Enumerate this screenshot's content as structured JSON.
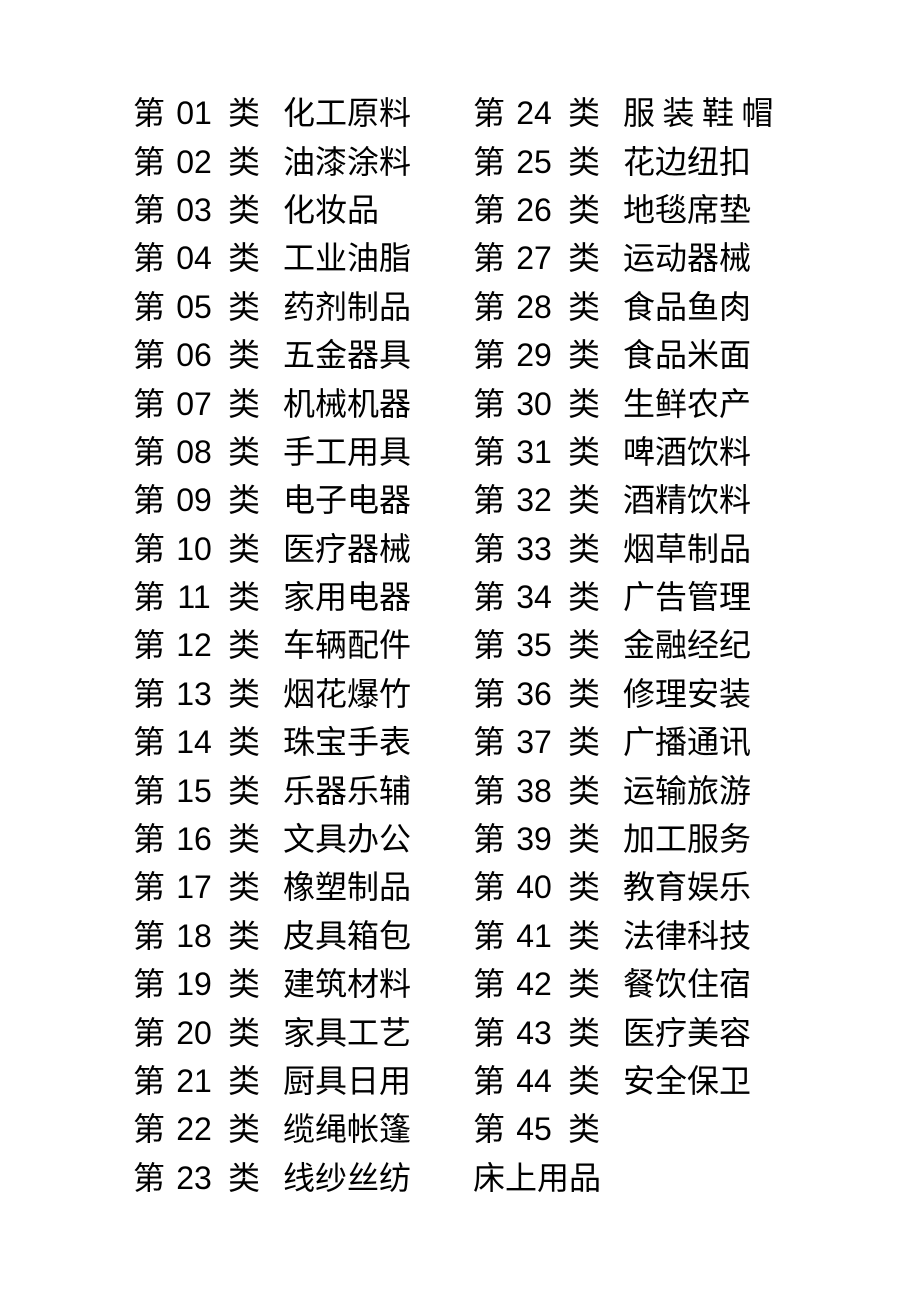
{
  "page": {
    "background": "#ffffff",
    "text_color": "#000000"
  },
  "labels": {
    "prefix": "第",
    "suffix": "类"
  },
  "left_items": [
    {
      "num": "01",
      "name": "化工原料"
    },
    {
      "num": "02",
      "name": "油漆涂料"
    },
    {
      "num": "03",
      "name": "化妆品"
    },
    {
      "num": "04",
      "name": "工业油脂"
    },
    {
      "num": "05",
      "name": "药剂制品"
    },
    {
      "num": "06",
      "name": "五金器具"
    },
    {
      "num": "07",
      "name": "机械机器"
    },
    {
      "num": "08",
      "name": "手工用具"
    },
    {
      "num": "09",
      "name": "电子电器"
    },
    {
      "num": "10",
      "name": "医疗器械"
    },
    {
      "num": "11",
      "name": "家用电器"
    },
    {
      "num": "12",
      "name": "车辆配件"
    },
    {
      "num": "13",
      "name": "烟花爆竹"
    },
    {
      "num": "14",
      "name": "珠宝手表"
    },
    {
      "num": "15",
      "name": "乐器乐辅"
    },
    {
      "num": "16",
      "name": "文具办公"
    },
    {
      "num": "17",
      "name": "橡塑制品"
    },
    {
      "num": "18",
      "name": "皮具箱包"
    },
    {
      "num": "19",
      "name": "建筑材料"
    },
    {
      "num": "20",
      "name": "家具工艺"
    },
    {
      "num": "21",
      "name": "厨具日用"
    },
    {
      "num": "22",
      "name": "缆绳帐篷"
    },
    {
      "num": "23",
      "name": "线纱丝纺"
    }
  ],
  "right_items": [
    {
      "num": "24",
      "name": "服装鞋帽"
    },
    {
      "num": "25",
      "name": "花边纽扣"
    },
    {
      "num": "26",
      "name": "地毯席垫"
    },
    {
      "num": "27",
      "name": "运动器械"
    },
    {
      "num": "28",
      "name": "食品鱼肉"
    },
    {
      "num": "29",
      "name": "食品米面"
    },
    {
      "num": "30",
      "name": "生鲜农产"
    },
    {
      "num": "31",
      "name": "啤酒饮料"
    },
    {
      "num": "32",
      "name": "酒精饮料"
    },
    {
      "num": "33",
      "name": "烟草制品"
    },
    {
      "num": "34",
      "name": "广告管理"
    },
    {
      "num": "35",
      "name": "金融经纪"
    },
    {
      "num": "36",
      "name": "修理安装"
    },
    {
      "num": "37",
      "name": "广播通讯"
    },
    {
      "num": "38",
      "name": "运输旅游"
    },
    {
      "num": "39",
      "name": "加工服务"
    },
    {
      "num": "40",
      "name": "教育娱乐"
    },
    {
      "num": "41",
      "name": "法律科技"
    },
    {
      "num": "42",
      "name": "餐饮住宿"
    },
    {
      "num": "43",
      "name": "医疗美容"
    },
    {
      "num": "44",
      "name": "安全保卫"
    },
    {
      "num": "45",
      "name": ""
    },
    {
      "num": "",
      "name": "床上用品"
    }
  ]
}
